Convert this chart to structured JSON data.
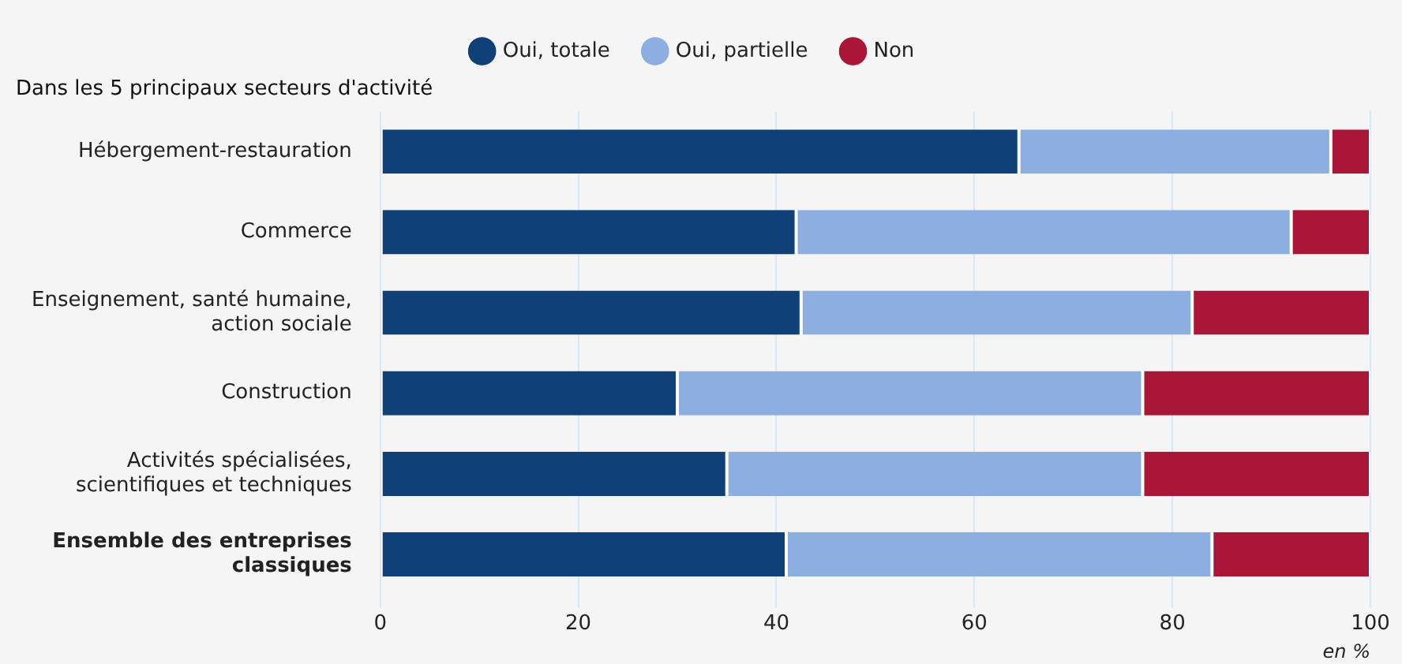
{
  "chart_data": {
    "type": "bar",
    "orientation": "horizontal",
    "stacked": true,
    "subtitle": "Dans les 5 principaux secteurs d'activité",
    "xlabel": "en %",
    "categories": [
      "Hébergement-restauration",
      "Commerce",
      "Enseignement, santé humaine, action sociale",
      "Construction",
      "Activités spécialisées, scientifiques et techniques",
      "Ensemble des entreprises classiques"
    ],
    "series": [
      {
        "name": "Oui, totale",
        "color": "#0f4078",
        "values": [
          64.5,
          42,
          42.5,
          30,
          35,
          41
        ]
      },
      {
        "name": "Oui, partielle",
        "color": "#8daee0",
        "values": [
          31.5,
          50,
          39.5,
          47,
          42,
          43
        ]
      },
      {
        "name": "Non",
        "color": "#a91637",
        "values": [
          4,
          8,
          18,
          23,
          23,
          16
        ]
      }
    ],
    "xlim": [
      0,
      100
    ],
    "xticks": [
      0,
      20,
      40,
      60,
      80,
      100
    ],
    "grid": "x",
    "legend": "top"
  }
}
